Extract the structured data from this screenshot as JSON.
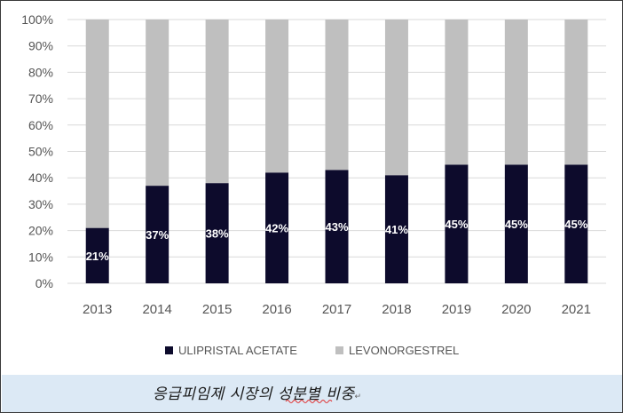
{
  "chart_data": {
    "type": "bar",
    "stacked": true,
    "percent_scale": true,
    "categories": [
      "2013",
      "2014",
      "2015",
      "2016",
      "2017",
      "2018",
      "2019",
      "2020",
      "2021"
    ],
    "series": [
      {
        "name": "ULIPRISTAL ACETATE",
        "color": "#0d0b2c",
        "values": [
          21,
          37,
          38,
          42,
          43,
          41,
          45,
          45,
          45
        ],
        "labels": [
          "21%",
          "37%",
          "38%",
          "42%",
          "43%",
          "41%",
          "45%",
          "45%",
          "45%"
        ]
      },
      {
        "name": "LEVONORGESTREL",
        "color": "#bfbfbf",
        "values": [
          79,
          63,
          62,
          58,
          57,
          59,
          55,
          55,
          55
        ]
      }
    ],
    "yticks": [
      "0%",
      "10%",
      "20%",
      "30%",
      "40%",
      "50%",
      "60%",
      "70%",
      "80%",
      "90%",
      "100%"
    ],
    "ylim": [
      0,
      100
    ],
    "grid": true,
    "legend": "bottom"
  },
  "caption": {
    "text": "응급피임제 시장의 성분별 비중",
    "mark": "↵"
  }
}
